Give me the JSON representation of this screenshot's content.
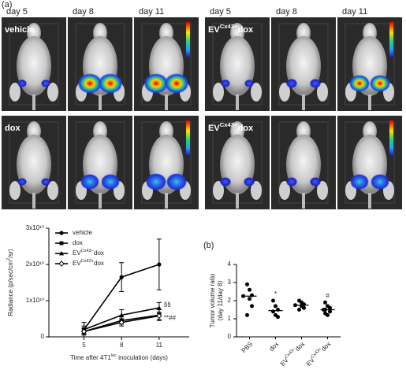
{
  "panel_labels": [
    "(a)",
    "(b)"
  ],
  "images": {
    "day_labels": [
      "day 5",
      "day 8",
      "day 11",
      "day 5",
      "day 8",
      "day 11"
    ],
    "groups": [
      {
        "main": "vehicle"
      },
      {
        "main": "dox"
      },
      {
        "main": "EV",
        "sup": "Cx43−",
        "after": "dox"
      },
      {
        "main": "EV",
        "sup": "Cx43+",
        "after": "dox"
      }
    ]
  },
  "chart_data": [
    {
      "type": "line",
      "x_label": {
        "main": "Time after 4T1",
        "sup": "luc",
        "after": " inoculation (days)"
      },
      "y_label": {
        "main": "Radiance (p/sec/cm",
        "sup": "2",
        "after": "/sr)"
      },
      "x": [
        5,
        8,
        11
      ],
      "xlim": [
        2.2,
        13.4
      ],
      "xticks": [
        5,
        8,
        11
      ],
      "ylim": [
        0,
        30000000000
      ],
      "yticks": [
        0,
        {
          "value": 10000000000,
          "label": "1x10¹⁰"
        },
        {
          "value": 20000000000,
          "label": "2x10¹⁰"
        },
        {
          "value": 30000000000,
          "label": "3x10¹⁰"
        }
      ],
      "legend": "upper left",
      "series": [
        {
          "name": {
            "main": "vehicle"
          },
          "color": "#000000",
          "marker": "circle",
          "values": [
            2000000000,
            16500000000,
            20000000000
          ],
          "errors": [
            2000000000,
            4000000000,
            7000000000
          ]
        },
        {
          "name": {
            "main": "dox"
          },
          "color": "#000000",
          "marker": "square",
          "values": [
            1500000000,
            4500000000,
            6000000000
          ],
          "errors": [
            1000000000,
            1000000000,
            1500000000
          ]
        },
        {
          "name": {
            "main": "EV",
            "sup": "Cx43−",
            "after": "dox"
          },
          "color": "#000000",
          "marker": "triangle",
          "values": [
            2000000000,
            6000000000,
            8000000000
          ],
          "errors": [
            1000000000,
            1500000000,
            1500000000
          ]
        },
        {
          "name": {
            "main": "EV",
            "sup": "Cx43+",
            "after": "dox"
          },
          "color": "#000000",
          "marker": "diamond",
          "values": [
            1500000000,
            4000000000,
            5800000000
          ],
          "errors": [
            800000000,
            1000000000,
            1000000000
          ]
        }
      ],
      "annotations": [
        "§§",
        "**##"
      ]
    },
    {
      "type": "strip",
      "y_label": [
        "Tumor volume ratio",
        "(day 11/day 8)"
      ],
      "categories": [
        {
          "main": "PBS"
        },
        {
          "main": "dox"
        },
        {
          "main": "EV",
          "sup": "Cx43−",
          "after": "dox"
        },
        {
          "main": "EV",
          "sup": "Cx43+",
          "after": "dox"
        }
      ],
      "ylim": [
        0,
        4
      ],
      "yticks": [
        0,
        1,
        2,
        3,
        4
      ],
      "color": "#000000",
      "groups": [
        [
          2.9,
          2.6,
          2.3,
          2.25,
          2.1,
          1.7,
          1.2
        ],
        [
          2.0,
          1.7,
          1.5,
          1.4,
          1.2,
          1.1
        ],
        [
          2.0,
          1.9,
          1.8,
          1.75,
          1.7,
          1.6,
          1.5
        ],
        [
          1.9,
          1.7,
          1.6,
          1.5,
          1.5,
          1.4,
          1.3,
          1.2
        ]
      ],
      "medians": [
        2.25,
        1.45,
        1.75,
        1.5
      ],
      "annotations": [
        "",
        "*",
        "",
        "#"
      ]
    }
  ]
}
